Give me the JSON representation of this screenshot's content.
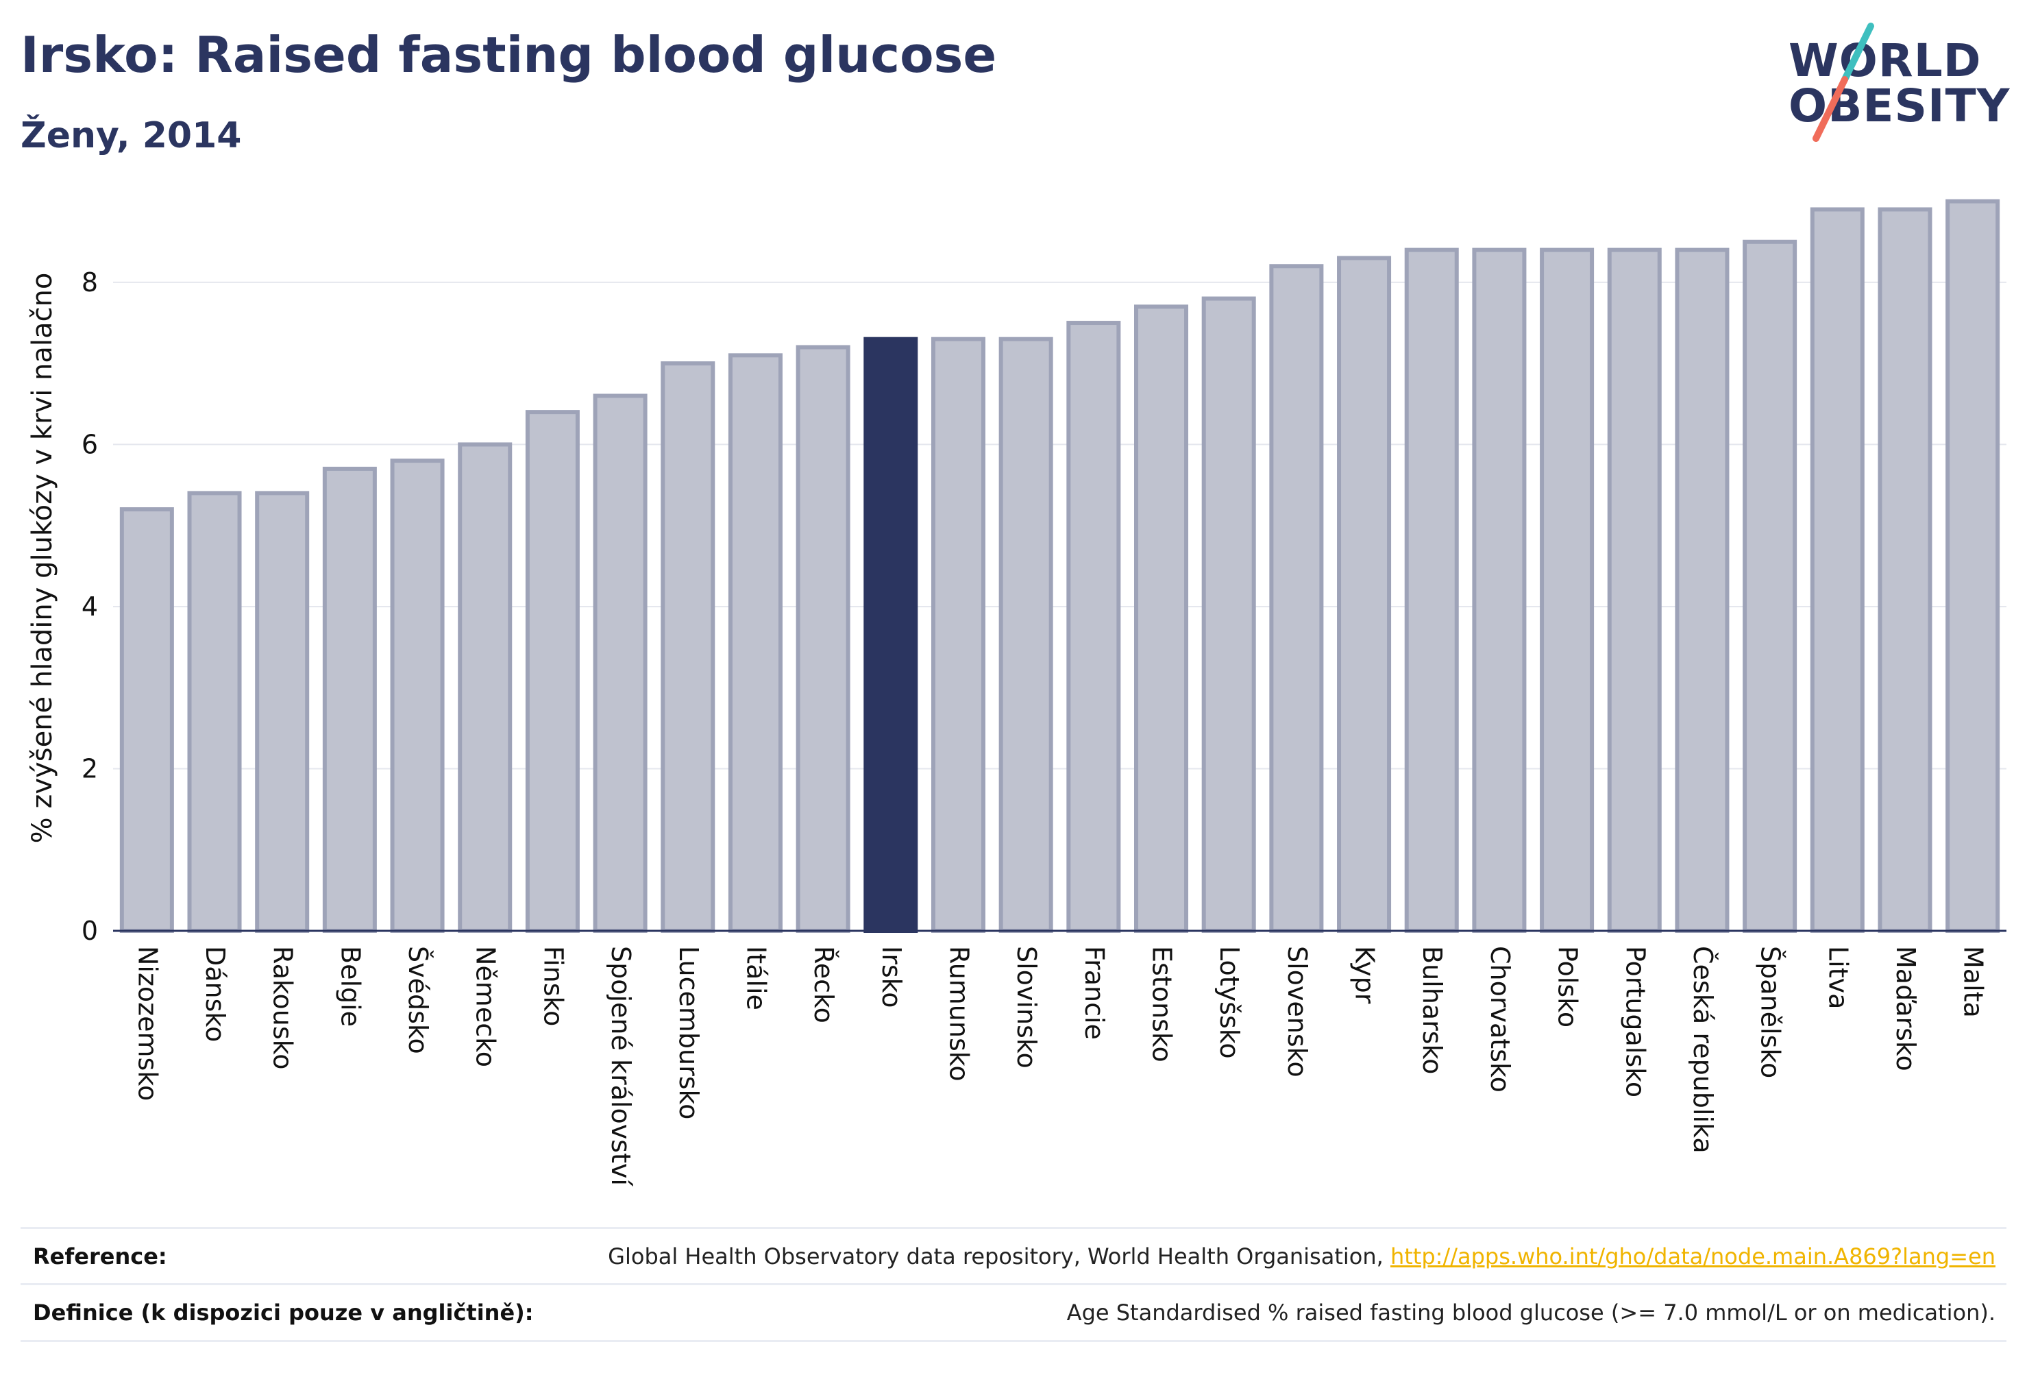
{
  "header": {
    "title": "Irsko: Raised fasting blood glucose",
    "subtitle": "Ženy, 2014"
  },
  "logo": {
    "line1": "WORLD",
    "line2": "OBESITY",
    "colors": {
      "text": "#2b3560",
      "slash_top": "#3fbfbf",
      "slash_bottom": "#f06c5a"
    }
  },
  "chart_data": {
    "type": "bar",
    "title": "",
    "xlabel": "",
    "ylabel": "% zvýšené hladiny glukózy v krvi nalačno",
    "ylim": [
      0,
      9.2
    ],
    "yticks": [
      0,
      2,
      4,
      6,
      8
    ],
    "grid": true,
    "highlight": "Irsko",
    "colors": {
      "bar": "#bfc2cf",
      "bar_edge": "#9ea3b8",
      "highlight": "#2b3560",
      "axis": "#2b3560",
      "grid": "#e5e7ee",
      "text": "#111111"
    },
    "categories": [
      "Nizozemsko",
      "Dánsko",
      "Rakousko",
      "Belgie",
      "Švédsko",
      "Německo",
      "Finsko",
      "Spojené království",
      "Lucembursko",
      "Itálie",
      "Řecko",
      "Irsko",
      "Rumunsko",
      "Slovinsko",
      "Francie",
      "Estonsko",
      "Lotyšsko",
      "Slovensko",
      "Kypr",
      "Bulharsko",
      "Chorvatsko",
      "Polsko",
      "Portugalsko",
      "Česká republika",
      "Španělsko",
      "Litva",
      "Maďarsko",
      "Malta"
    ],
    "values": [
      5.2,
      5.4,
      5.4,
      5.7,
      5.8,
      6.0,
      6.4,
      6.6,
      7.0,
      7.1,
      7.2,
      7.3,
      7.3,
      7.3,
      7.5,
      7.7,
      7.8,
      8.2,
      8.3,
      8.4,
      8.4,
      8.4,
      8.4,
      8.4,
      8.5,
      8.9,
      8.9,
      9.0
    ]
  },
  "footer": {
    "reference_label": "Reference:",
    "reference_text": "Global Health Observatory data repository, World Health Organisation,",
    "reference_link": "http://apps.who.int/gho/data/node.main.A869?lang=en",
    "definition_label": "Definice (k dispozici pouze v angličtině):",
    "definition_text": "Age Standardised % raised fasting blood glucose (>= 7.0 mmol/L or on medication)."
  }
}
